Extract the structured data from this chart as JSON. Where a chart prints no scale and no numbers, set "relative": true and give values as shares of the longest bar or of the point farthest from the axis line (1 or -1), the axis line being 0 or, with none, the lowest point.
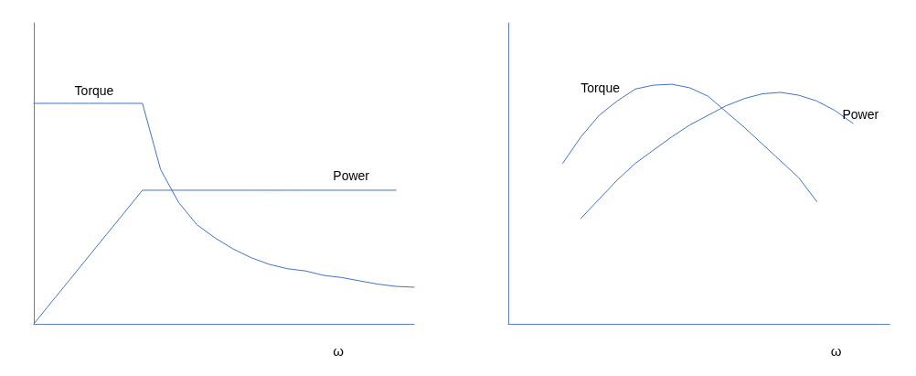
{
  "chart_data": [
    {
      "type": "line",
      "xlabel": "ω",
      "relative": true,
      "legend": false,
      "grid": false,
      "marker": "none",
      "line_style": "solid",
      "categories": [
        null,
        null,
        null,
        null,
        null,
        null,
        null,
        null,
        null,
        null,
        null,
        null,
        null,
        null,
        null,
        null,
        null,
        null,
        null,
        null,
        null,
        null
      ],
      "series": [
        {
          "name": "Torque",
          "color": "#4472c4",
          "values": [
            1,
            1,
            1,
            1,
            1,
            1,
            1,
            0.7,
            0.55,
            0.45,
            0.39,
            0.34,
            0.3,
            0.27,
            0.25,
            0.24,
            0.22,
            0.21,
            0.195,
            0.18,
            0.17,
            0.166
          ]
        },
        {
          "name": "Power",
          "color": "#4472c4",
          "values": [
            0,
            0.101,
            0.202,
            0.303,
            0.404,
            0.505,
            0.606,
            0.606,
            0.606,
            0.606,
            0.606,
            0.606,
            0.606,
            0.606,
            0.606,
            0.606,
            0.606,
            0.606,
            0.606,
            0.606,
            0.606,
            null
          ]
        }
      ]
    },
    {
      "type": "line",
      "xlabel": "ω",
      "relative": true,
      "legend": false,
      "grid": false,
      "marker": "none",
      "line_style": "solid",
      "categories": [
        null,
        null,
        null,
        null,
        null,
        null,
        null,
        null,
        null,
        null,
        null,
        null,
        null,
        null,
        null,
        null,
        null,
        null,
        null,
        null,
        null,
        null
      ],
      "series": [
        {
          "name": "Torque",
          "color": "#4472c4",
          "values": [
            null,
            null,
            null,
            0.67,
            0.78,
            0.87,
            0.93,
            0.98,
            0.996,
            1,
            0.985,
            0.95,
            0.885,
            0.82,
            0.75,
            0.68,
            0.61,
            0.51,
            null,
            null,
            null,
            null
          ]
        },
        {
          "name": "Power",
          "color": "#4472c4",
          "values": [
            null,
            null,
            null,
            null,
            0.44,
            0.52,
            0.6,
            0.67,
            0.725,
            0.78,
            0.83,
            0.87,
            0.91,
            0.94,
            0.96,
            0.966,
            0.954,
            0.93,
            0.89,
            0.836,
            null,
            null
          ]
        }
      ]
    }
  ]
}
